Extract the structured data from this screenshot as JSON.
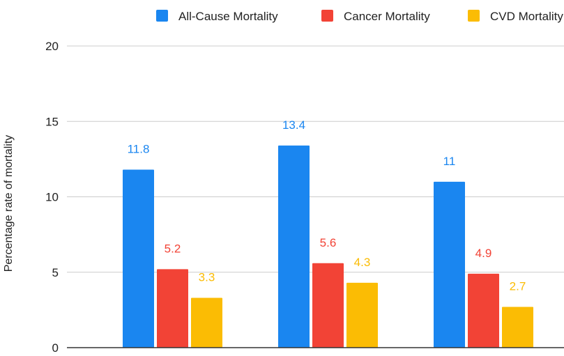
{
  "chart_data": {
    "type": "bar",
    "ylabel": "Percentage rate of mortality",
    "ylim": [
      0,
      20
    ],
    "yticks": [
      0,
      5,
      10,
      15,
      20
    ],
    "grid": true,
    "legend_position": "top",
    "categories": [
      "",
      "",
      ""
    ],
    "series": [
      {
        "name": "All-Cause Mortality",
        "color": "#1a86f0",
        "values": [
          11.8,
          13.4,
          11
        ]
      },
      {
        "name": "Cancer Mortality",
        "color": "#f24336",
        "values": [
          5.2,
          5.6,
          4.9
        ]
      },
      {
        "name": "CVD Mortality",
        "color": "#fbbc04",
        "values": [
          3.3,
          4.3,
          2.7
        ]
      }
    ],
    "data_labels": [
      [
        "11.8",
        "13.4",
        "11"
      ],
      [
        "5.2",
        "5.6",
        "4.9"
      ],
      [
        "3.3",
        "4.3",
        "2.7"
      ]
    ]
  }
}
